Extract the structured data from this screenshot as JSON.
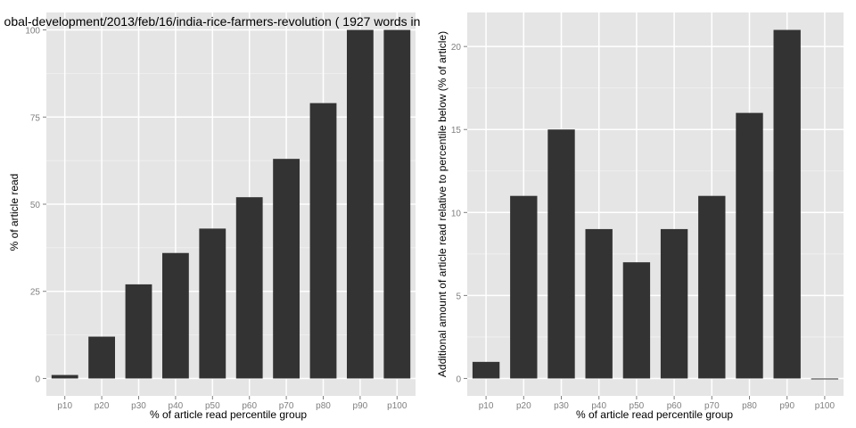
{
  "chart_data": [
    {
      "type": "bar",
      "title": "obal-development/2013/feb/16/india-rice-farmers-revolution ( 1927 words in",
      "xlabel": "% of article read percentile group",
      "ylabel": "% of article read",
      "categories": [
        "p10",
        "p20",
        "p30",
        "p40",
        "p50",
        "p60",
        "p70",
        "p80",
        "p90",
        "p100"
      ],
      "values": [
        1,
        12,
        27,
        36,
        43,
        52,
        63,
        79,
        100,
        100
      ],
      "ylim": [
        -5,
        105
      ],
      "yticks": [
        0,
        25,
        50,
        75,
        100
      ],
      "grid": true,
      "colors": {
        "panel_bg": "#e5e5e5",
        "grid_major": "#ffffff",
        "grid_minor": "#f2f2f2",
        "bar": "#333333",
        "tick_text": "#7f7f7f",
        "label_text": "#000000"
      }
    },
    {
      "type": "bar",
      "title": "",
      "xlabel": "% of article read percentile group",
      "ylabel": "Additional amount of article read relative to percentile below (% of article)",
      "categories": [
        "p10",
        "p20",
        "p30",
        "p40",
        "p50",
        "p60",
        "p70",
        "p80",
        "p90",
        "p100"
      ],
      "values": [
        1,
        11,
        15,
        9,
        7,
        9,
        11,
        16,
        21,
        0
      ],
      "ylim": [
        -1.05,
        22.05
      ],
      "yticks": [
        0,
        5,
        10,
        15,
        20
      ],
      "grid": true,
      "colors": {
        "panel_bg": "#e5e5e5",
        "grid_major": "#ffffff",
        "grid_minor": "#f2f2f2",
        "bar": "#333333",
        "tick_text": "#7f7f7f",
        "label_text": "#000000"
      }
    }
  ]
}
